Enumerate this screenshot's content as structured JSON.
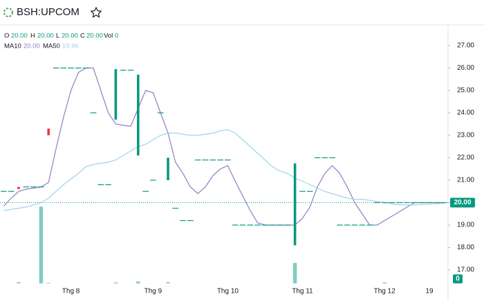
{
  "chart_data": {
    "type": "candlestick",
    "title": "BSH:UPCOM",
    "legend": {
      "open_label": "O",
      "open": "20.00",
      "high_label": "H",
      "high": "20.00",
      "low_label": "L",
      "low": "20.00",
      "close_label": "C",
      "close": "20.00",
      "volume_label": "Vol",
      "volume": "0",
      "ma10": "20.00",
      "ma50": "19.96"
    },
    "categories": [
      null,
      null,
      null,
      null,
      null,
      null,
      null,
      null,
      null,
      "Thg 8",
      null,
      null,
      null,
      null,
      null,
      null,
      null,
      null,
      null,
      null,
      "Thg 9",
      null,
      null,
      null,
      null,
      null,
      null,
      null,
      null,
      null,
      "Thg 10",
      null,
      null,
      null,
      null,
      null,
      null,
      null,
      null,
      null,
      "Thg 11",
      null,
      null,
      null,
      null,
      null,
      null,
      null,
      null,
      null,
      null,
      "Thg 12",
      null,
      null,
      null,
      null,
      null,
      "19",
      null,
      null
    ],
    "ohlc": {
      "up_color": "#089981",
      "down_color": "#f23645",
      "open": [
        20.5,
        20.5,
        20.7,
        20.7,
        20.7,
        20.7,
        23.3,
        26,
        26,
        26,
        26,
        26,
        24,
        20.8,
        20.8,
        23.7,
        25.9,
        25.9,
        22.1,
        20.5,
        21,
        24,
        21,
        19.75,
        19.2,
        19.2,
        21.9,
        21.9,
        21.9,
        21.9,
        21.9,
        19,
        19,
        19,
        19,
        19,
        19,
        19,
        19,
        18.1,
        20.5,
        20.5,
        22,
        22,
        22,
        19,
        19,
        19,
        19,
        19,
        20,
        20,
        20,
        20,
        20,
        20,
        20,
        20,
        20,
        20
      ],
      "high": [
        20.5,
        20.5,
        20.7,
        20.7,
        20.7,
        20.7,
        23.3,
        26,
        26,
        26,
        26,
        26,
        24,
        20.8,
        20.8,
        25.95,
        25.9,
        25.9,
        25.7,
        20.5,
        21,
        24,
        22,
        19.75,
        19.2,
        19.2,
        21.9,
        21.9,
        21.9,
        21.9,
        21.9,
        19,
        19,
        19,
        19,
        19,
        19,
        19,
        19,
        21.75,
        20.5,
        20.5,
        22,
        22,
        22,
        19,
        19,
        19,
        19,
        19,
        20,
        20,
        20,
        20,
        20,
        20,
        20,
        20,
        20,
        20
      ],
      "low": [
        20.5,
        20.5,
        20.6,
        20.7,
        20.7,
        20.7,
        23,
        26,
        26,
        26,
        26,
        26,
        24,
        20.8,
        20.8,
        23.7,
        25.9,
        25.9,
        22.1,
        20.5,
        21,
        24,
        21,
        19.75,
        19.2,
        19.2,
        21.9,
        21.9,
        21.9,
        21.9,
        21.9,
        19,
        19,
        19,
        19,
        19,
        19,
        19,
        19,
        18.1,
        20.5,
        20.5,
        22,
        22,
        22,
        19,
        19,
        19,
        19,
        19,
        20,
        20,
        20,
        20,
        20,
        20,
        20,
        20,
        20,
        20
      ],
      "close": [
        20.5,
        20.5,
        20.6,
        20.7,
        20.7,
        20.7,
        23,
        26,
        26,
        26,
        26,
        26,
        24,
        20.8,
        20.8,
        25.95,
        25.9,
        25.9,
        25.7,
        20.5,
        21,
        24,
        22,
        19.75,
        19.2,
        19.2,
        21.9,
        21.9,
        21.9,
        21.9,
        21.9,
        19,
        19,
        19,
        19,
        19,
        19,
        19,
        19,
        21.75,
        20.5,
        20.5,
        22,
        22,
        22,
        19,
        19,
        19,
        19,
        19,
        20,
        20,
        20,
        20,
        20,
        20,
        20,
        20,
        20,
        20
      ]
    },
    "series": [
      {
        "name": "MA10",
        "color": "#8e7cc3",
        "values": [
          19.85,
          20.2,
          20.5,
          20.6,
          20.65,
          20.7,
          20.9,
          22.4,
          23.8,
          25,
          25.8,
          26,
          26,
          25,
          24,
          23.5,
          23.45,
          23.4,
          24.2,
          25,
          24.9,
          24,
          23.1,
          21.8,
          21.3,
          20.7,
          20.4,
          20.7,
          21.2,
          21.5,
          21.65,
          20.95,
          20.3,
          19.65,
          19.1,
          19,
          19,
          19,
          19,
          19,
          19.3,
          19.8,
          20.7,
          21.3,
          21.65,
          21.3,
          20.7,
          20,
          19.5,
          19,
          19,
          19.2,
          19.4,
          19.6,
          19.8,
          20,
          20,
          20,
          20,
          20
        ]
      },
      {
        "name": "MA50",
        "color": "#9fd4ec",
        "values": [
          19.65,
          19.7,
          19.75,
          19.8,
          19.9,
          20,
          20.2,
          20.5,
          20.8,
          21.05,
          21.3,
          21.6,
          21.7,
          21.75,
          21.8,
          21.9,
          22.1,
          22.3,
          22.5,
          22.6,
          22.8,
          23,
          23.1,
          23.1,
          23.05,
          23,
          23,
          23.05,
          23.1,
          23.2,
          23.25,
          23.1,
          22.8,
          22.5,
          22.2,
          21.9,
          21.6,
          21.4,
          21.3,
          21.1,
          20.95,
          20.8,
          20.65,
          20.5,
          20.4,
          20.3,
          20.2,
          20.15,
          20.15,
          20.1,
          20.05,
          20,
          19.95,
          19.9,
          19.9,
          19.9,
          19.92,
          19.94,
          19.95,
          19.96
        ]
      }
    ],
    "volume": {
      "color": "#7fcdc1",
      "axis": "y2",
      "values": [
        0,
        0,
        200,
        0,
        0,
        12000,
        100,
        0,
        0,
        0,
        0,
        0,
        0,
        0,
        0,
        150,
        0,
        0,
        300,
        0,
        0,
        0,
        200,
        0,
        0,
        0,
        0,
        0,
        0,
        0,
        0,
        0,
        0,
        0,
        0,
        0,
        0,
        0,
        0,
        3200,
        0,
        0,
        0,
        0,
        0,
        0,
        0,
        0,
        0,
        0,
        0,
        150,
        0,
        0,
        0,
        0,
        0,
        0,
        0,
        0
      ]
    },
    "ylim": [
      16.4,
      27.8
    ],
    "yticks": [
      {
        "value": 17,
        "label": "17.00"
      },
      {
        "value": 18,
        "label": "18.00"
      },
      {
        "value": 19,
        "label": "19.00"
      },
      {
        "value": 20,
        "label": "20.00"
      },
      {
        "value": 21,
        "label": "21.00"
      },
      {
        "value": 22,
        "label": "22.00"
      },
      {
        "value": 23,
        "label": "23.00"
      },
      {
        "value": 24,
        "label": "24.00"
      },
      {
        "value": 25,
        "label": "25.00"
      },
      {
        "value": 26,
        "label": "26.00"
      },
      {
        "value": 27,
        "label": "27.00"
      }
    ],
    "y2lim": [
      0,
      40000
    ],
    "last_price": {
      "value": 20,
      "label": "20.00"
    },
    "last_volume": 0
  }
}
